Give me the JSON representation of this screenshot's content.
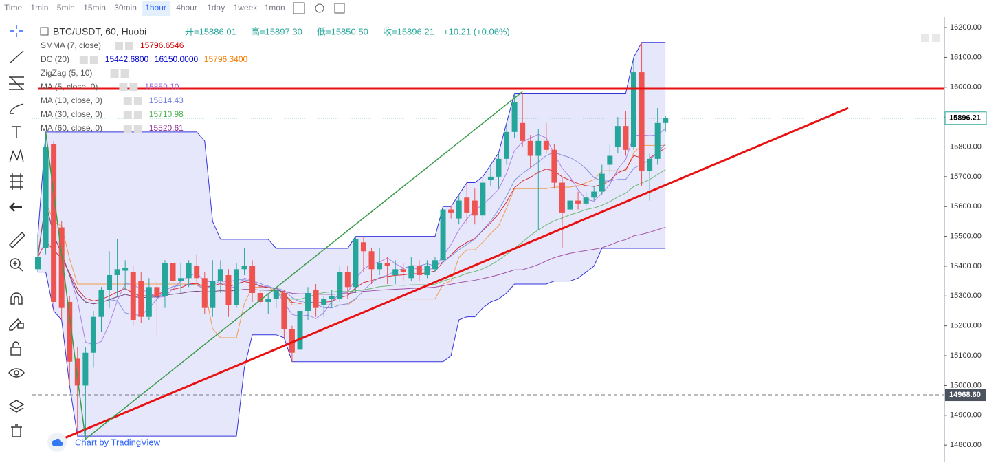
{
  "toolbar": {
    "items": [
      "Time",
      "1min",
      "5min",
      "15min",
      "30min",
      "1hour",
      "4hour",
      "1day",
      "1week",
      "1mon"
    ],
    "active": "1hour"
  },
  "legend": {
    "symbol": "BTC/USDT, 60, Huobi",
    "ohlc": [
      "开=15886.01",
      "高=15897.30",
      "低=15850.50",
      "收=15896.21"
    ],
    "change": "+10.21 (+0.06%)",
    "indicators": [
      {
        "name": "SMMA (7, close)",
        "values": [
          "15796.6546"
        ],
        "colors": [
          "#d50000"
        ]
      },
      {
        "name": "DC (20)",
        "values": [
          "15442.6800",
          "16150.0000",
          "15796.3400"
        ],
        "colors": [
          "#0000cc",
          "#0000cc",
          "#f57c00"
        ]
      },
      {
        "name": "ZigZag (5, 10)",
        "values": [],
        "colors": []
      },
      {
        "name": "MA (5, close, 0)",
        "values": [
          "15859.10"
        ],
        "colors": [
          "#9c6ade"
        ]
      },
      {
        "name": "MA (10, close, 0)",
        "values": [
          "15814.43"
        ],
        "colors": [
          "#6c7cd8"
        ]
      },
      {
        "name": "MA (30, close, 0)",
        "values": [
          "15710.98"
        ],
        "colors": [
          "#4caf50"
        ]
      },
      {
        "name": "MA (60, close, 0)",
        "values": [
          "15520.61"
        ],
        "colors": [
          "#8e2c8e"
        ]
      }
    ]
  },
  "watermark": "Chart by TradingView",
  "chart_data": {
    "type": "candlestick",
    "up_color": "#26a69a",
    "down_color": "#ef5350",
    "open": [
      15390,
      15460,
      15810,
      15530,
      15280,
      15090,
      15000,
      15110,
      15230,
      15320,
      15370,
      15385,
      15380,
      15350,
      15230,
      15330,
      15300,
      15410,
      15350,
      15360,
      15400,
      15360,
      15260,
      15350,
      15370,
      15270,
      15390,
      15400,
      15310,
      15280,
      15290,
      15310,
      15190,
      15120,
      15250,
      15320,
      15270,
      15290,
      15290,
      15380,
      15330,
      15480,
      15450,
      15390,
      15410,
      15370,
      15390,
      15360,
      15400,
      15370,
      15390,
      15420,
      15590,
      15560,
      15630,
      15620,
      15570,
      15690,
      15700,
      15760,
      15850,
      15880,
      15820,
      15770,
      15820,
      15790,
      15680,
      15590,
      15620,
      15610,
      15630,
      15650,
      15740,
      15800,
      15870,
      15800,
      16050,
      15720,
      15760,
      15880
    ],
    "high": [
      15500,
      15850,
      15820,
      15550,
      15300,
      15130,
      15130,
      15250,
      15330,
      15450,
      15490,
      15420,
      15400,
      15380,
      15360,
      15350,
      15420,
      15420,
      15410,
      15420,
      15440,
      15380,
      15420,
      15420,
      15390,
      15410,
      15460,
      15420,
      15320,
      15310,
      15330,
      15320,
      15200,
      15260,
      15330,
      15340,
      15300,
      15320,
      15400,
      15400,
      15500,
      15500,
      15460,
      15460,
      15430,
      15420,
      15410,
      15430,
      15420,
      15420,
      15430,
      15600,
      15600,
      15640,
      15680,
      15660,
      15700,
      15740,
      15780,
      15880,
      15980,
      15980,
      15840,
      15860,
      15880,
      15810,
      15700,
      15640,
      15650,
      15650,
      15670,
      15740,
      15810,
      15900,
      15920,
      16100,
      16150,
      15780,
      15930,
      15905
    ],
    "low": [
      15380,
      15440,
      15250,
      15220,
      15000,
      14830,
      14830,
      15060,
      15180,
      15260,
      15300,
      15320,
      15200,
      15210,
      15220,
      15170,
      15260,
      15330,
      15310,
      15330,
      15340,
      15240,
      15230,
      15310,
      15230,
      15260,
      15370,
      15280,
      15270,
      15240,
      15260,
      15160,
      15080,
      15100,
      15220,
      15230,
      15230,
      15260,
      15280,
      15290,
      15310,
      15380,
      15340,
      15370,
      15340,
      15340,
      15350,
      15350,
      15350,
      15360,
      15380,
      15400,
      15560,
      15540,
      15540,
      15540,
      15550,
      15670,
      15660,
      15740,
      15830,
      15800,
      15730,
      15520,
      15780,
      15660,
      15460,
      15590,
      15590,
      15600,
      15620,
      15640,
      15710,
      15780,
      15770,
      15790,
      15670,
      15620,
      15740,
      15850
    ],
    "close": [
      15430,
      15800,
      15280,
      15260,
      15080,
      15000,
      15110,
      15230,
      15320,
      15370,
      15390,
      15395,
      15220,
      15230,
      15330,
      15300,
      15410,
      15350,
      15360,
      15410,
      15360,
      15260,
      15350,
      15390,
      15270,
      15390,
      15400,
      15310,
      15280,
      15290,
      15320,
      15190,
      15110,
      15250,
      15310,
      15260,
      15290,
      15300,
      15380,
      15330,
      15490,
      15450,
      15390,
      15410,
      15400,
      15390,
      15380,
      15400,
      15370,
      15400,
      15420,
      15590,
      15580,
      15620,
      15580,
      15570,
      15680,
      15700,
      15760,
      15850,
      15950,
      15820,
      15770,
      15820,
      15790,
      15680,
      15580,
      15620,
      15610,
      15630,
      15650,
      15710,
      15770,
      15870,
      15790,
      16050,
      15720,
      15760,
      15880,
      15896.21
    ],
    "ylim": [
      14745,
      16237
    ],
    "yticks": [
      {
        "value": 14800,
        "label": "14800.00"
      },
      {
        "value": 14900,
        "label": "14900.00"
      },
      {
        "value": 15000,
        "label": "15000.00"
      },
      {
        "value": 15100,
        "label": "15100.00"
      },
      {
        "value": 15200,
        "label": "15200.00"
      },
      {
        "value": 15300,
        "label": "15300.00"
      },
      {
        "value": 15400,
        "label": "15400.00"
      },
      {
        "value": 15500,
        "label": "15500.00"
      },
      {
        "value": 15600,
        "label": "15600.00"
      },
      {
        "value": 15700,
        "label": "15700.00"
      },
      {
        "value": 15800,
        "label": "15800.00"
      },
      {
        "value": 15900,
        "label": "15900.00"
      },
      {
        "value": 16000,
        "label": "16000.00"
      },
      {
        "value": 16100,
        "label": "16100.00"
      },
      {
        "value": 16200,
        "label": "16200.00"
      }
    ],
    "last_price": {
      "value": 15896.21,
      "label": "15896.21"
    },
    "crosshair_price": {
      "value": 14968.6,
      "label": "14968.60"
    },
    "hline": 15995,
    "trendline": [
      [
        3.5,
        14825
      ],
      [
        102,
        15930
      ]
    ],
    "zigzag": [
      [
        1,
        15850
      ],
      [
        6,
        14820
      ],
      [
        61,
        15985
      ]
    ]
  }
}
